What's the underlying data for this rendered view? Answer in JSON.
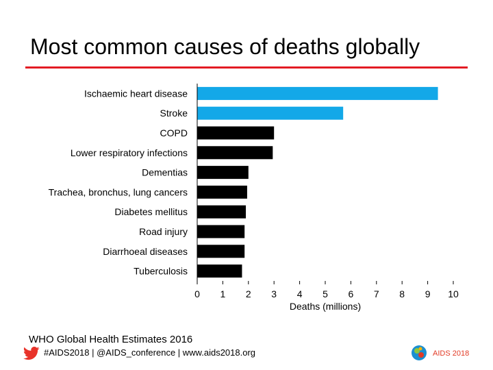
{
  "title": "Most common causes of deaths globally",
  "colors": {
    "title_rule": "#e31b23",
    "highlight_bar": "#13a8e8",
    "default_bar": "#000000",
    "axis": "#000000",
    "twitter": "#e8332a",
    "aids_logo": "#e23a25"
  },
  "chart_data": {
    "type": "bar",
    "orientation": "horizontal",
    "categories": [
      "Ischaemic heart disease",
      "Stroke",
      "COPD",
      "Lower respiratory infections",
      "Dementias",
      "Trachea, bronchus, lung cancers",
      "Diabetes mellitus",
      "Road injury",
      "Diarrhoeal diseases",
      "Tuberculosis"
    ],
    "values": [
      9.4,
      5.7,
      3.0,
      2.95,
      2.0,
      1.95,
      1.9,
      1.85,
      1.85,
      1.75
    ],
    "highlighted": [
      true,
      true,
      false,
      false,
      false,
      false,
      false,
      false,
      false,
      false
    ],
    "xlabel": "Deaths (millions)",
    "ylabel": "",
    "xlim": [
      0,
      10
    ],
    "xticks": [
      "0",
      "1",
      "2",
      "3",
      "4",
      "5",
      "6",
      "7",
      "8",
      "9",
      "10"
    ],
    "grid": false,
    "legend": "none"
  },
  "source": "WHO Global Health Estimates 2016",
  "footer": "#AIDS2018 | @AIDS_conference | www.aids2018.org",
  "logo_text": "AIDS 2018",
  "icons": {
    "twitter": "twitter-bird-icon",
    "logo": "aids2018-logo-icon"
  }
}
